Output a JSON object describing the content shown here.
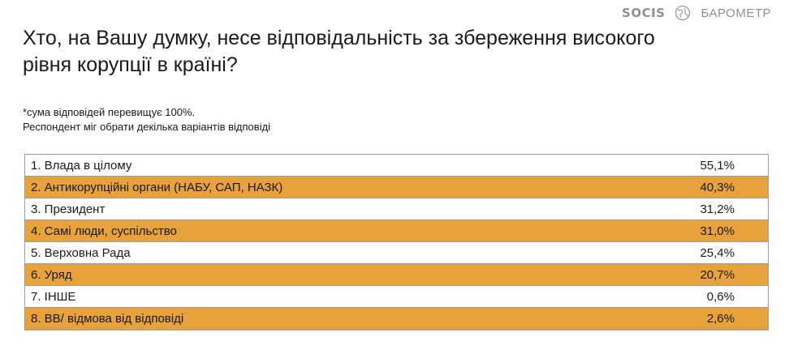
{
  "brand": {
    "socis": "SOCIS",
    "barometer": "БАРОМЕТР",
    "icon": "globe-icon"
  },
  "title": "Хто, на Вашу думку, несе відповідальність за збереження високого рівня корупції в країні?",
  "notes": [
    "*сума відповідей перевищує 100%.",
    "Респондент міг обрати декілька варіантів відповіді"
  ],
  "colors": {
    "row_highlight": "#e8a23d",
    "row_plain": "#ffffff",
    "border": "#9b9b9b"
  },
  "chart_data": {
    "type": "table",
    "categories": [
      "1. Влада в цілому",
      "2. Антикорупційні органи (НАБУ, САП, НАЗК)",
      "3. Президент",
      "4. Самі люди, суспільство",
      "5. Верховна Рада",
      "6. Уряд",
      "7. ІНШЕ",
      "8. ВВ/ відмова від відповіді"
    ],
    "values": [
      55.1,
      40.3,
      31.2,
      31.0,
      25.4,
      20.7,
      0.6,
      2.6
    ],
    "value_labels": [
      "55,1%",
      "40,3%",
      "31,2%",
      "31,0%",
      "25,4%",
      "20,7%",
      "0,6%",
      "2,6%"
    ]
  }
}
